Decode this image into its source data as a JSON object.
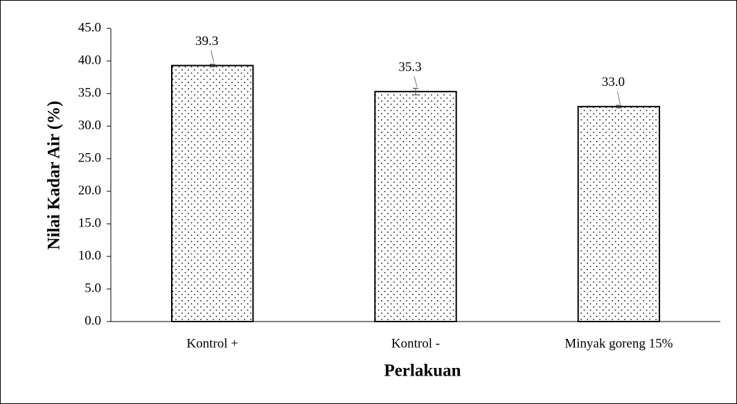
{
  "chart_data": {
    "type": "bar",
    "y_label": "Nilai Kadar Air (%)",
    "x_label": "Perlakuan",
    "categories": [
      "Kontrol +",
      "Kontrol -",
      "Minyak goreng 15%"
    ],
    "values": [
      39.3,
      35.3,
      33.0
    ],
    "value_labels": [
      "39.3",
      "35.3",
      "33.0"
    ],
    "errors": [
      0.2,
      0.5,
      0.2
    ],
    "color": "#000000",
    "ylim": [
      0,
      45
    ],
    "yticks": [
      {
        "value": 0,
        "label": "0.0"
      },
      {
        "value": 5,
        "label": "5.0"
      },
      {
        "value": 10,
        "label": "10.0"
      },
      {
        "value": 15,
        "label": "15.0"
      },
      {
        "value": 20,
        "label": "20.0"
      },
      {
        "value": 25,
        "label": "25.0"
      },
      {
        "value": 30,
        "label": "30.0"
      },
      {
        "value": 35,
        "label": "35.0"
      },
      {
        "value": 40,
        "label": "40.0"
      },
      {
        "value": 45,
        "label": "45.0"
      }
    ],
    "grid": false
  }
}
